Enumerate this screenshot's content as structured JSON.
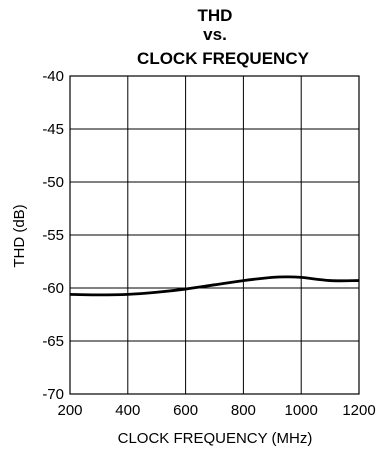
{
  "chart_data": {
    "type": "line",
    "title_lines": [
      "THD",
      "vs.",
      "CLOCK FREQUENCY"
    ],
    "xlabel": "CLOCK FREQUENCY (MHz)",
    "ylabel": "THD (dB)",
    "xlim": [
      200,
      1200
    ],
    "ylim": [
      -70,
      -40
    ],
    "xticks": [
      "200",
      "400",
      "600",
      "800",
      "1000",
      "1200"
    ],
    "yticks": [
      "-40",
      "-45",
      "-50",
      "-55",
      "-60",
      "-65",
      "-70"
    ],
    "grid": true,
    "series": [
      {
        "x": [
          200,
          300,
          400,
          500,
          600,
          700,
          800,
          900,
          950,
          1000,
          1100,
          1200
        ],
        "y": [
          -60.6,
          -60.65,
          -60.6,
          -60.4,
          -60.1,
          -59.7,
          -59.3,
          -59.0,
          -58.95,
          -59.0,
          -59.3,
          -59.3
        ]
      }
    ]
  }
}
